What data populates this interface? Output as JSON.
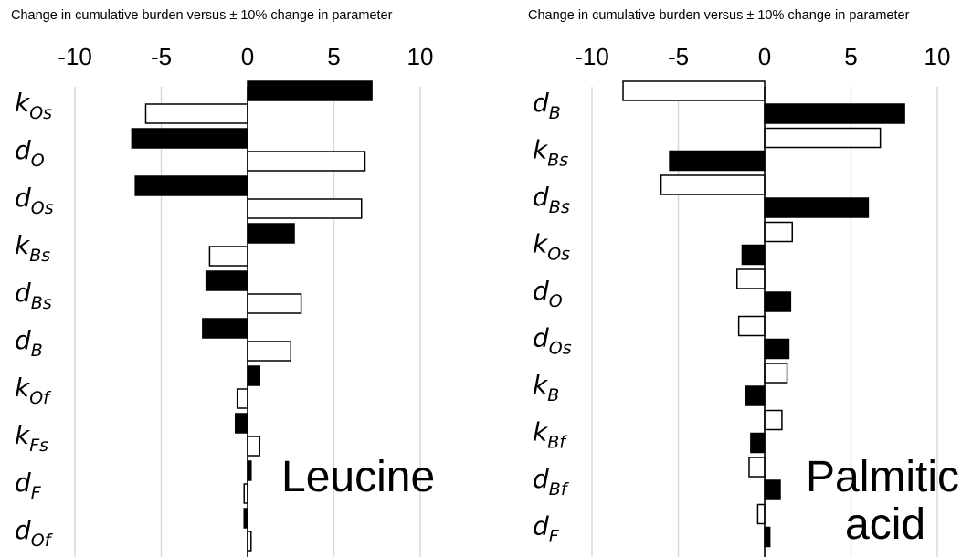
{
  "chart_data": [
    {
      "type": "bar",
      "orientation": "horizontal",
      "title": "Change in cumulative burden versus ± 10% change in parameter",
      "chart_label": "Leucine",
      "xlim": [
        -10,
        10
      ],
      "xticks": [
        "-10",
        "-5",
        "0",
        "5",
        "10"
      ],
      "grid": true,
      "categories": [
        {
          "base": "k",
          "sub": "Os"
        },
        {
          "base": "d",
          "sub": "O"
        },
        {
          "base": "d",
          "sub": "Os"
        },
        {
          "base": "k",
          "sub": "Bs"
        },
        {
          "base": "d",
          "sub": "Bs"
        },
        {
          "base": "d",
          "sub": "B"
        },
        {
          "base": "k",
          "sub": "Of"
        },
        {
          "base": "k",
          "sub": "Fs"
        },
        {
          "base": "d",
          "sub": "F"
        },
        {
          "base": "d",
          "sub": "Of"
        }
      ],
      "series": [
        {
          "fill": "#000000",
          "values": [
            7.2,
            -6.7,
            -6.5,
            2.7,
            -2.4,
            -2.6,
            0.7,
            -0.7,
            0.2,
            -0.2
          ]
        },
        {
          "fill": "#ffffff",
          "values": [
            -5.9,
            6.8,
            6.6,
            -2.2,
            3.1,
            2.5,
            -0.6,
            0.7,
            -0.2,
            0.2
          ]
        }
      ]
    },
    {
      "type": "bar",
      "orientation": "horizontal",
      "title": "Change in cumulative burden versus ± 10% change in parameter",
      "chart_label": [
        "Palmitic",
        "acid"
      ],
      "xlim": [
        -10,
        10
      ],
      "xticks": [
        "-10",
        "-5",
        "0",
        "5",
        "10"
      ],
      "grid": true,
      "categories": [
        {
          "base": "d",
          "sub": "B"
        },
        {
          "base": "k",
          "sub": "Bs"
        },
        {
          "base": "d",
          "sub": "Bs"
        },
        {
          "base": "k",
          "sub": "Os"
        },
        {
          "base": "d",
          "sub": "O"
        },
        {
          "base": "d",
          "sub": "Os"
        },
        {
          "base": "k",
          "sub": "B"
        },
        {
          "base": "k",
          "sub": "Bf"
        },
        {
          "base": "d",
          "sub": "Bf"
        },
        {
          "base": "d",
          "sub": "F"
        }
      ],
      "series": [
        {
          "fill": "#ffffff",
          "values": [
            -8.2,
            6.7,
            -6.0,
            1.6,
            -1.6,
            -1.5,
            1.3,
            1.0,
            -0.9,
            -0.4
          ]
        },
        {
          "fill": "#000000",
          "values": [
            8.1,
            -5.5,
            6.0,
            -1.3,
            1.5,
            1.4,
            -1.1,
            -0.8,
            0.9,
            0.3
          ]
        }
      ]
    }
  ]
}
